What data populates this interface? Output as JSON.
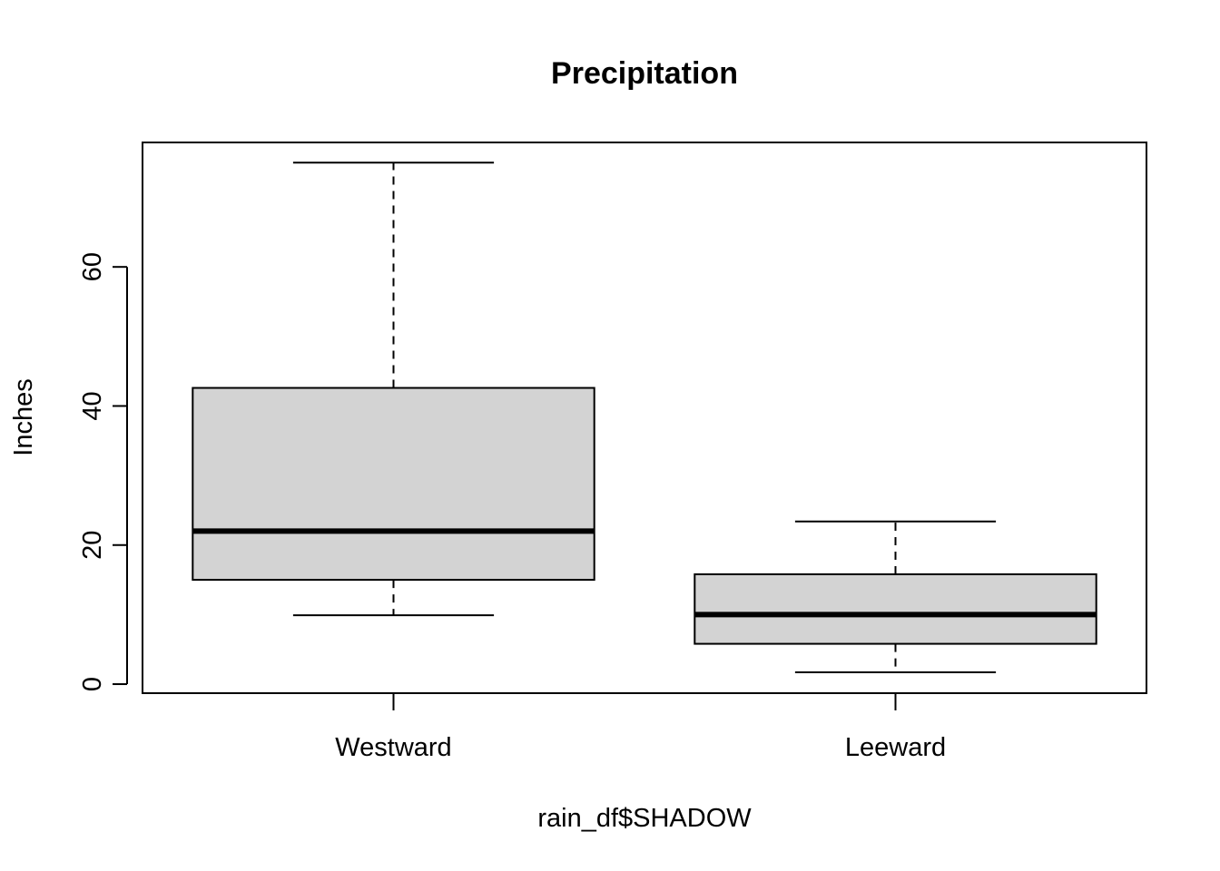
{
  "chart_data": {
    "type": "boxplot",
    "title": "Precipitation",
    "xlabel": "rain_df$SHADOW",
    "ylabel": "Inches",
    "categories": [
      "Westward",
      "Leeward"
    ],
    "boxes": [
      {
        "category": "Westward",
        "whisker_low": 9.9,
        "q1": 15.0,
        "median": 22.0,
        "q3": 42.6,
        "whisker_high": 75.0
      },
      {
        "category": "Leeward",
        "whisker_low": 1.7,
        "q1": 5.8,
        "median": 10.0,
        "q3": 15.8,
        "whisker_high": 23.4
      }
    ],
    "ylim": [
      -1.3,
      77.9
    ],
    "y_ticks": [
      0,
      20,
      40,
      60
    ],
    "grid": false,
    "box_fill": "#d3d3d3",
    "line_color": "#000000"
  }
}
